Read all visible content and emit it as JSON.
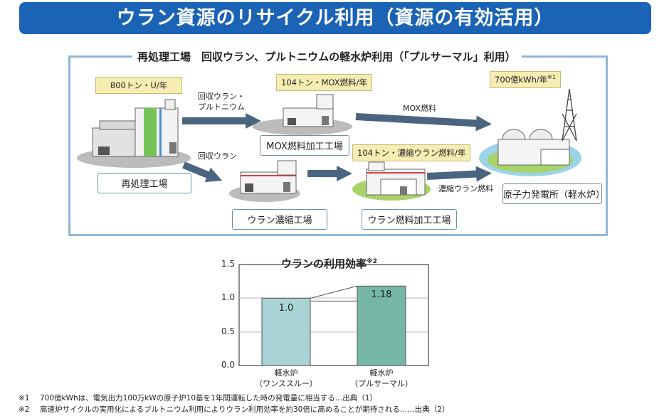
{
  "header": {
    "title": "ウラン資源のリサイクル利用（資源の有効活用）"
  },
  "flow": {
    "frame_title": "再処理工場　回収ウラン、プルトニウムの軽水炉利用（「プルサーマル」利用）",
    "tags": {
      "reprocessing": "800トン・U/年",
      "mox": "104トン・MOX燃料/年",
      "npp": "700億kWh/年",
      "npp_mark": "※1",
      "fuel": "104トン・濃縮ウラン燃料/年"
    },
    "plants": {
      "reprocessing": "再処理工場",
      "mox": "MOX燃料加工工場",
      "enrichment": "ウラン濃縮工場",
      "fuel": "ウラン燃料加工工場",
      "npp": "原子力発電所（軽水炉）"
    },
    "arrows": {
      "to_mox_line1": "回収ウラン・",
      "to_mox_line2": "プルトニウム",
      "to_enrich": "回収ウラン",
      "mox_fuel": "MOX燃料",
      "enriched_fuel": "濃縮ウラン燃料"
    },
    "colors": {
      "arrow": "#4a6580",
      "frame": "#8fb6d8",
      "tag": "#f6edb3",
      "ground": "#bcbcbc",
      "green": "#a8d26a"
    }
  },
  "chart_data": {
    "type": "bar",
    "title": "ウランの利用効率",
    "title_mark": "※2",
    "categories": [
      {
        "line1": "軽水炉",
        "line2": "（ワンススルー）"
      },
      {
        "line1": "軽水炉",
        "line2": "（プルサーマル）"
      }
    ],
    "values": [
      1.0,
      1.18
    ],
    "value_labels": [
      "1.0",
      "1.18"
    ],
    "bar_colors": [
      "#a9d3d6",
      "#76b6a7"
    ],
    "ylim": [
      0,
      1.5
    ],
    "yticks": [
      "0.0",
      "0.5",
      "1.0",
      "1.5"
    ],
    "grid": true
  },
  "notes": [
    {
      "mark": "※1",
      "text": "700億kWhは、電気出力100万kWの原子炉10基を1年間運転した時の発電量に相当する…出典（1）"
    },
    {
      "mark": "※2",
      "text": "高速炉サイクルの実用化によるプルトニウム利用によりウラン利用効率を約30倍に高めることが期待される……出典（2）"
    }
  ]
}
